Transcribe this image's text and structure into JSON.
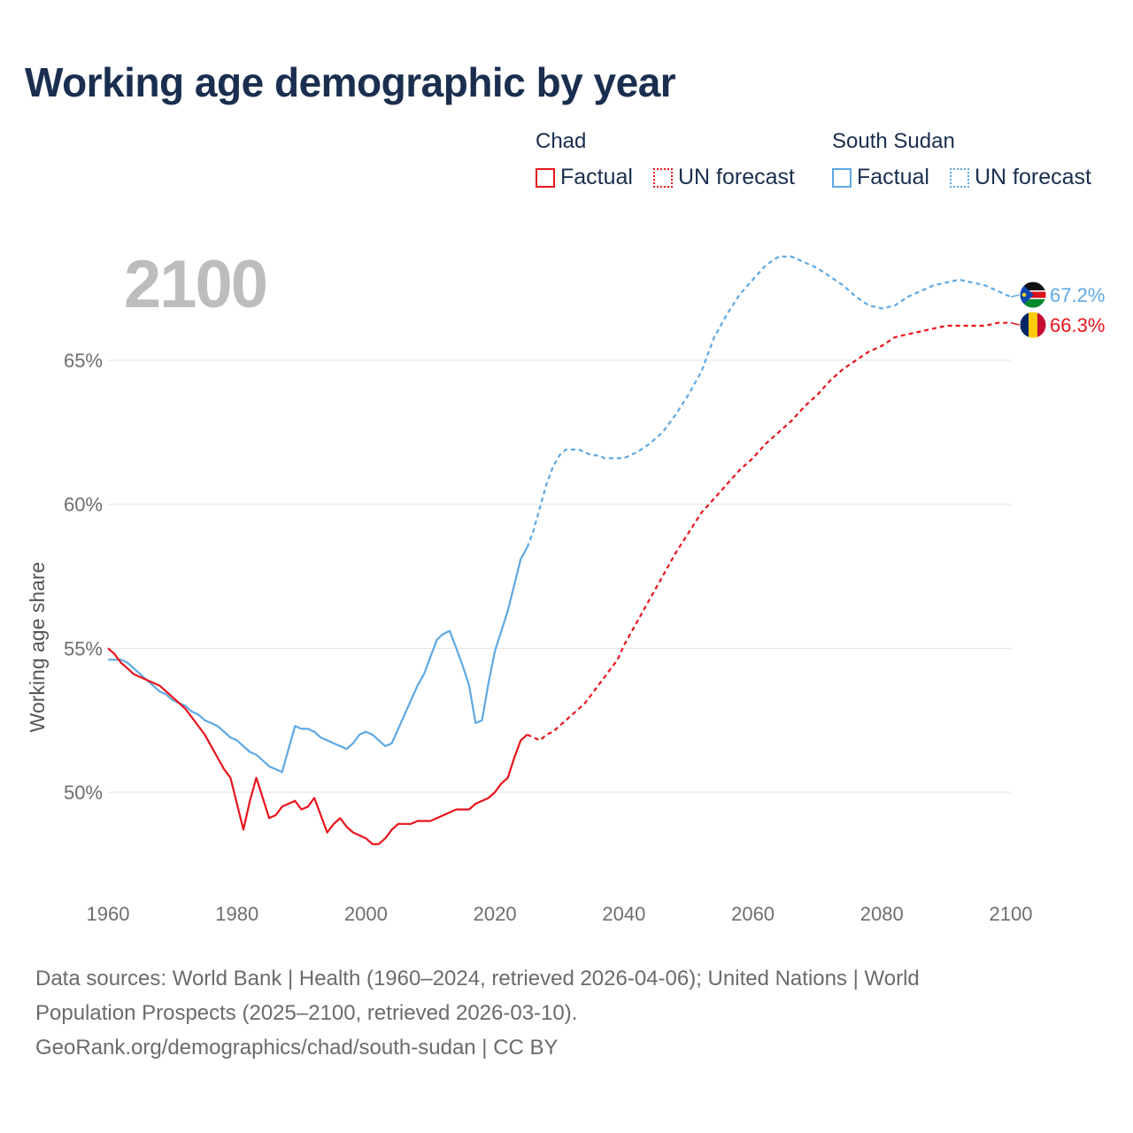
{
  "title": "Working age demographic by year",
  "year_display": "2100",
  "legend": {
    "groups": [
      {
        "country": "Chad",
        "color": "#e8141c",
        "factual_label": "Factual",
        "forecast_label": "UN forecast"
      },
      {
        "country": "South Sudan",
        "color": "#5ea8e3",
        "factual_label": "Factual",
        "forecast_label": "UN forecast"
      }
    ]
  },
  "sources": {
    "line1": "Data sources: World Bank | Health (1960–2024, retrieved 2026-04-06); United Nations | World",
    "line2": "Population Prospects (2025–2100, retrieved 2026-03-10).",
    "line3": "GeoRank.org/demographics/chad/south-sudan | CC BY"
  },
  "chart_data": {
    "type": "line",
    "title": "Working age demographic by year",
    "xlabel": "",
    "ylabel": "Working age share",
    "xlim": [
      1960,
      2100
    ],
    "ylim": [
      46.5,
      69
    ],
    "x_ticks": [
      1960,
      1980,
      2000,
      2020,
      2040,
      2060,
      2080,
      2100
    ],
    "x_tick_labels": [
      "1960",
      "1980",
      "2000",
      "2020",
      "2040",
      "2060",
      "2080",
      "2100"
    ],
    "y_ticks": [
      50,
      55,
      60,
      65
    ],
    "y_tick_labels": [
      "50%",
      "55%",
      "60%",
      "65%"
    ],
    "grid": true,
    "series": [
      {
        "name": "Chad",
        "color": "#e8141c",
        "end_label": "66.3%",
        "flag_icon": "chad-flag-icon",
        "factual": [
          [
            1960,
            55.0
          ],
          [
            1961,
            54.8
          ],
          [
            1962,
            54.5
          ],
          [
            1963,
            54.3
          ],
          [
            1964,
            54.1
          ],
          [
            1965,
            54.0
          ],
          [
            1966,
            53.9
          ],
          [
            1967,
            53.8
          ],
          [
            1968,
            53.7
          ],
          [
            1969,
            53.5
          ],
          [
            1970,
            53.3
          ],
          [
            1971,
            53.1
          ],
          [
            1972,
            52.9
          ],
          [
            1973,
            52.6
          ],
          [
            1974,
            52.3
          ],
          [
            1975,
            52.0
          ],
          [
            1976,
            51.6
          ],
          [
            1977,
            51.2
          ],
          [
            1978,
            50.8
          ],
          [
            1979,
            50.5
          ],
          [
            1980,
            49.6
          ],
          [
            1981,
            48.7
          ],
          [
            1982,
            49.7
          ],
          [
            1983,
            50.5
          ],
          [
            1984,
            49.8
          ],
          [
            1985,
            49.1
          ],
          [
            1986,
            49.2
          ],
          [
            1987,
            49.5
          ],
          [
            1988,
            49.6
          ],
          [
            1989,
            49.7
          ],
          [
            1990,
            49.4
          ],
          [
            1991,
            49.5
          ],
          [
            1992,
            49.8
          ],
          [
            1993,
            49.2
          ],
          [
            1994,
            48.6
          ],
          [
            1995,
            48.9
          ],
          [
            1996,
            49.1
          ],
          [
            1997,
            48.8
          ],
          [
            1998,
            48.6
          ],
          [
            1999,
            48.5
          ],
          [
            2000,
            48.4
          ],
          [
            2001,
            48.2
          ],
          [
            2002,
            48.2
          ],
          [
            2003,
            48.4
          ],
          [
            2004,
            48.7
          ],
          [
            2005,
            48.9
          ],
          [
            2006,
            48.9
          ],
          [
            2007,
            48.9
          ],
          [
            2008,
            49.0
          ],
          [
            2009,
            49.0
          ],
          [
            2010,
            49.0
          ],
          [
            2011,
            49.1
          ],
          [
            2012,
            49.2
          ],
          [
            2013,
            49.3
          ],
          [
            2014,
            49.4
          ],
          [
            2015,
            49.4
          ],
          [
            2016,
            49.4
          ],
          [
            2017,
            49.6
          ],
          [
            2018,
            49.7
          ],
          [
            2019,
            49.8
          ],
          [
            2020,
            50.0
          ],
          [
            2021,
            50.3
          ],
          [
            2022,
            50.5
          ],
          [
            2023,
            51.2
          ],
          [
            2024,
            51.8
          ],
          [
            2025,
            52.0
          ]
        ],
        "forecast": [
          [
            2025,
            52.0
          ],
          [
            2026,
            51.9
          ],
          [
            2027,
            51.8
          ],
          [
            2028,
            52.0
          ],
          [
            2029,
            52.1
          ],
          [
            2030,
            52.3
          ],
          [
            2031,
            52.5
          ],
          [
            2032,
            52.7
          ],
          [
            2033,
            52.9
          ],
          [
            2034,
            53.1
          ],
          [
            2035,
            53.4
          ],
          [
            2036,
            53.7
          ],
          [
            2037,
            54.0
          ],
          [
            2038,
            54.3
          ],
          [
            2039,
            54.6
          ],
          [
            2040,
            55.1
          ],
          [
            2042,
            55.9
          ],
          [
            2044,
            56.7
          ],
          [
            2046,
            57.5
          ],
          [
            2048,
            58.3
          ],
          [
            2050,
            59.0
          ],
          [
            2052,
            59.7
          ],
          [
            2054,
            60.2
          ],
          [
            2056,
            60.7
          ],
          [
            2058,
            61.2
          ],
          [
            2060,
            61.6
          ],
          [
            2062,
            62.1
          ],
          [
            2064,
            62.5
          ],
          [
            2066,
            62.9
          ],
          [
            2068,
            63.4
          ],
          [
            2070,
            63.8
          ],
          [
            2072,
            64.3
          ],
          [
            2074,
            64.7
          ],
          [
            2076,
            65.0
          ],
          [
            2078,
            65.3
          ],
          [
            2080,
            65.5
          ],
          [
            2082,
            65.8
          ],
          [
            2084,
            65.9
          ],
          [
            2086,
            66.0
          ],
          [
            2088,
            66.1
          ],
          [
            2090,
            66.2
          ],
          [
            2092,
            66.2
          ],
          [
            2094,
            66.2
          ],
          [
            2096,
            66.2
          ],
          [
            2098,
            66.3
          ],
          [
            2100,
            66.3
          ]
        ]
      },
      {
        "name": "South Sudan",
        "color": "#5ea8e3",
        "end_label": "67.2%",
        "flag_icon": "south-sudan-flag-icon",
        "factual": [
          [
            1960,
            54.6
          ],
          [
            1961,
            54.6
          ],
          [
            1962,
            54.6
          ],
          [
            1963,
            54.5
          ],
          [
            1964,
            54.3
          ],
          [
            1965,
            54.1
          ],
          [
            1966,
            53.9
          ],
          [
            1967,
            53.7
          ],
          [
            1968,
            53.5
          ],
          [
            1969,
            53.4
          ],
          [
            1970,
            53.2
          ],
          [
            1971,
            53.1
          ],
          [
            1972,
            53.0
          ],
          [
            1973,
            52.8
          ],
          [
            1974,
            52.7
          ],
          [
            1975,
            52.5
          ],
          [
            1976,
            52.4
          ],
          [
            1977,
            52.3
          ],
          [
            1978,
            52.1
          ],
          [
            1979,
            51.9
          ],
          [
            1980,
            51.8
          ],
          [
            1981,
            51.6
          ],
          [
            1982,
            51.4
          ],
          [
            1983,
            51.3
          ],
          [
            1984,
            51.1
          ],
          [
            1985,
            50.9
          ],
          [
            1986,
            50.8
          ],
          [
            1987,
            50.7
          ],
          [
            1988,
            51.5
          ],
          [
            1989,
            52.3
          ],
          [
            1990,
            52.2
          ],
          [
            1991,
            52.2
          ],
          [
            1992,
            52.1
          ],
          [
            1993,
            51.9
          ],
          [
            1994,
            51.8
          ],
          [
            1995,
            51.7
          ],
          [
            1996,
            51.6
          ],
          [
            1997,
            51.5
          ],
          [
            1998,
            51.7
          ],
          [
            1999,
            52.0
          ],
          [
            2000,
            52.1
          ],
          [
            2001,
            52.0
          ],
          [
            2002,
            51.8
          ],
          [
            2003,
            51.6
          ],
          [
            2004,
            51.7
          ],
          [
            2005,
            52.2
          ],
          [
            2006,
            52.7
          ],
          [
            2007,
            53.2
          ],
          [
            2008,
            53.7
          ],
          [
            2009,
            54.1
          ],
          [
            2010,
            54.7
          ],
          [
            2011,
            55.3
          ],
          [
            2012,
            55.5
          ],
          [
            2013,
            55.6
          ],
          [
            2014,
            55.0
          ],
          [
            2015,
            54.4
          ],
          [
            2016,
            53.7
          ],
          [
            2017,
            52.4
          ],
          [
            2018,
            52.5
          ],
          [
            2019,
            53.8
          ],
          [
            2020,
            54.9
          ],
          [
            2021,
            55.6
          ],
          [
            2022,
            56.3
          ],
          [
            2023,
            57.2
          ],
          [
            2024,
            58.1
          ],
          [
            2025,
            58.5
          ]
        ],
        "forecast": [
          [
            2025,
            58.5
          ],
          [
            2026,
            59.1
          ],
          [
            2027,
            59.9
          ],
          [
            2028,
            60.7
          ],
          [
            2029,
            61.3
          ],
          [
            2030,
            61.7
          ],
          [
            2031,
            61.9
          ],
          [
            2032,
            61.9
          ],
          [
            2033,
            61.9
          ],
          [
            2034,
            61.8
          ],
          [
            2035,
            61.7
          ],
          [
            2036,
            61.7
          ],
          [
            2037,
            61.6
          ],
          [
            2038,
            61.6
          ],
          [
            2039,
            61.6
          ],
          [
            2040,
            61.6
          ],
          [
            2042,
            61.8
          ],
          [
            2044,
            62.1
          ],
          [
            2046,
            62.5
          ],
          [
            2048,
            63.1
          ],
          [
            2050,
            63.8
          ],
          [
            2052,
            64.6
          ],
          [
            2054,
            65.8
          ],
          [
            2056,
            66.6
          ],
          [
            2058,
            67.3
          ],
          [
            2060,
            67.8
          ],
          [
            2062,
            68.3
          ],
          [
            2064,
            68.6
          ],
          [
            2066,
            68.6
          ],
          [
            2068,
            68.4
          ],
          [
            2070,
            68.2
          ],
          [
            2072,
            67.9
          ],
          [
            2074,
            67.6
          ],
          [
            2076,
            67.2
          ],
          [
            2078,
            66.9
          ],
          [
            2080,
            66.8
          ],
          [
            2082,
            66.9
          ],
          [
            2084,
            67.2
          ],
          [
            2086,
            67.4
          ],
          [
            2088,
            67.6
          ],
          [
            2090,
            67.7
          ],
          [
            2092,
            67.8
          ],
          [
            2094,
            67.7
          ],
          [
            2096,
            67.6
          ],
          [
            2098,
            67.4
          ],
          [
            2100,
            67.2
          ]
        ]
      }
    ]
  }
}
